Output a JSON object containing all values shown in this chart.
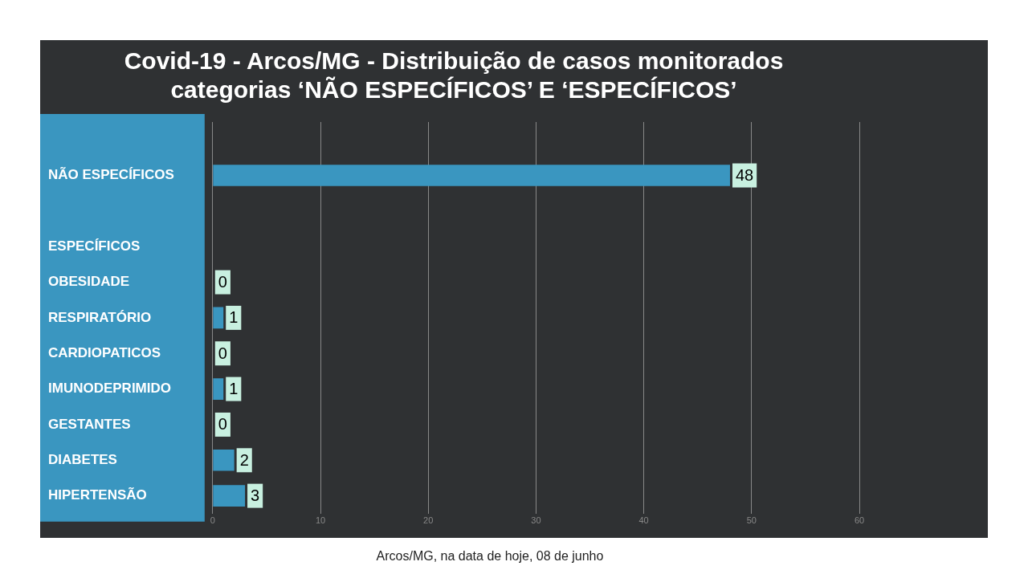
{
  "chart_data": {
    "type": "bar",
    "orientation": "horizontal",
    "title": [
      "Covid-19 - Arcos/MG - Distribuição de casos monitorados",
      "categorias ‘NÃO ESPECÍFICOS’ E ‘ESPECÍFICOS’"
    ],
    "categories": [
      null,
      "NÃO ESPECÍFICOS",
      null,
      "ESPECÍFICOS",
      "OBESIDADE",
      "RESPIRATÓRIO",
      "CARDIOPATICOS",
      "IMUNODEPRIMIDO",
      "GESTANTES",
      "DIABETES",
      "HIPERTENSÃO"
    ],
    "values": [
      null,
      48,
      null,
      null,
      0,
      1,
      0,
      1,
      0,
      2,
      3
    ],
    "color": "#3a96c0",
    "xlim": [
      0,
      60
    ],
    "xticks": [
      0,
      10,
      20,
      30,
      40,
      50,
      60
    ],
    "grid": "x",
    "data_labels": true,
    "annotations": [
      "Arcos/MG, na data de hoje, 08 de junho"
    ]
  }
}
